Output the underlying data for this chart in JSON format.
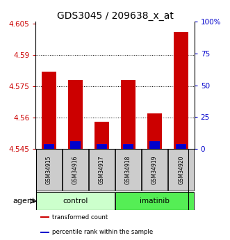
{
  "title": "GDS3045 / 209638_x_at",
  "samples": [
    "GSM34915",
    "GSM34916",
    "GSM34917",
    "GSM34918",
    "GSM34919",
    "GSM34920"
  ],
  "transformed_count": [
    4.582,
    4.578,
    4.558,
    4.578,
    4.562,
    4.601
  ],
  "percentile_rank": [
    4,
    6,
    4,
    4,
    6,
    4
  ],
  "ymin": 4.545,
  "ymax": 4.606,
  "yticks": [
    4.545,
    4.56,
    4.575,
    4.59,
    4.605
  ],
  "ytick_labels": [
    "4.545",
    "4.56",
    "4.575",
    "4.59",
    "4.605"
  ],
  "right_yticks": [
    0,
    25,
    50,
    75,
    100
  ],
  "right_ytick_labels": [
    "0",
    "25",
    "50",
    "75",
    "100%"
  ],
  "groups": [
    {
      "label": "control",
      "indices": [
        0,
        1,
        2
      ],
      "color": "#ccffcc"
    },
    {
      "label": "imatinib",
      "indices": [
        3,
        4,
        5
      ],
      "color": "#55ee55"
    }
  ],
  "bar_color_red": "#cc0000",
  "bar_color_blue": "#0000cc",
  "bar_width": 0.55,
  "title_fontsize": 10,
  "axis_label_color_red": "#cc0000",
  "axis_label_color_blue": "#0000cc",
  "agent_label": "agent",
  "legend_items": [
    {
      "color": "#cc0000",
      "label": "transformed count"
    },
    {
      "color": "#0000cc",
      "label": "percentile rank within the sample"
    }
  ],
  "sample_box_color": "#cccccc",
  "grid_color": "black",
  "grid_linestyle": ":"
}
